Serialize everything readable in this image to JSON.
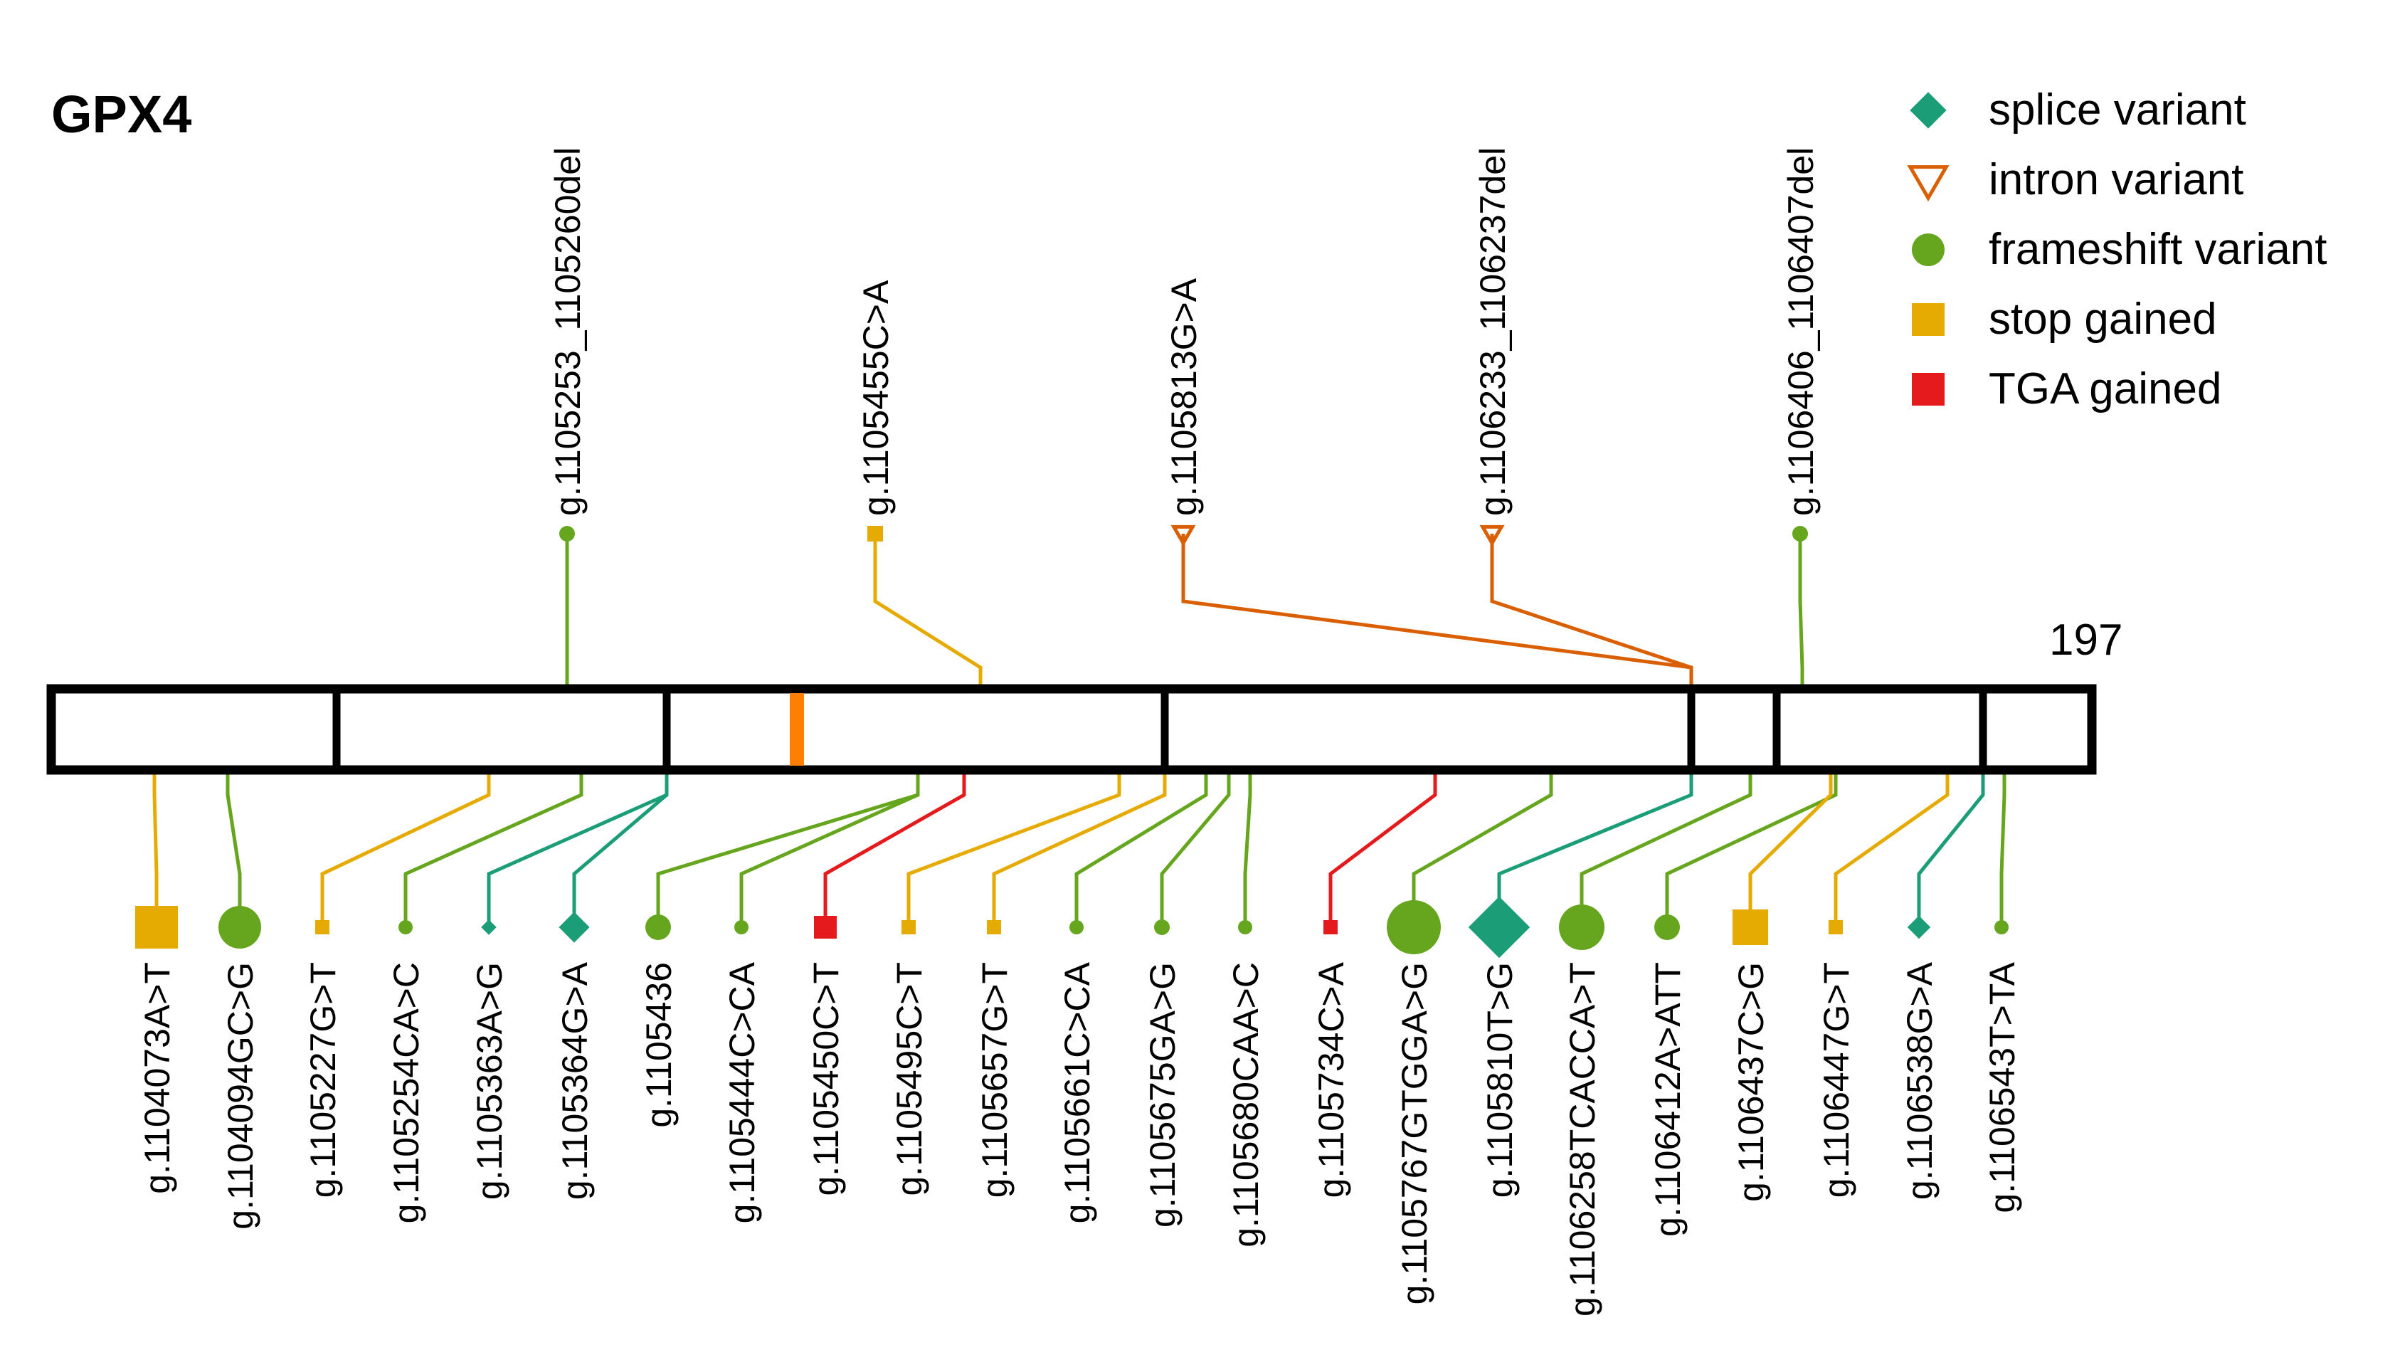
{
  "title": "GPX4",
  "protein_length_label": "197",
  "colors": {
    "splice": "#1b9e77",
    "intron": "#d95f02",
    "frameshift": "#66a61e",
    "stop": "#e6ab02",
    "tga": "#e41a1c",
    "region": "#ff7f00",
    "frame": "#000000"
  },
  "legend": [
    {
      "key": "splice",
      "label": "splice variant",
      "shape": "diamond"
    },
    {
      "key": "intron",
      "label": "intron variant",
      "shape": "triangle-down-open"
    },
    {
      "key": "frameshift",
      "label": "frameshift variant",
      "shape": "circle"
    },
    {
      "key": "stop",
      "label": "stop gained",
      "shape": "square"
    },
    {
      "key": "tga",
      "label": "TGA gained",
      "shape": "square"
    }
  ],
  "top_variants": [
    {
      "label": "g.1105253_1105260del",
      "type": "frameshift"
    },
    {
      "label": "g.1105455C>A",
      "type": "stop"
    },
    {
      "label": "g.1105813G>A",
      "type": "intron"
    },
    {
      "label": "g.1106233_1106237del",
      "type": "intron"
    },
    {
      "label": "g.1106406_1106407del",
      "type": "frameshift"
    }
  ],
  "bottom_variants": [
    {
      "label": "g.1104073A>T",
      "type": "stop"
    },
    {
      "label": "g.1104094GC>G",
      "type": "frameshift"
    },
    {
      "label": "g.1105227G>T",
      "type": "stop"
    },
    {
      "label": "g.1105254CA>C",
      "type": "frameshift"
    },
    {
      "label": "g.1105363A>G",
      "type": "splice"
    },
    {
      "label": "g.1105364G>A",
      "type": "splice"
    },
    {
      "label": "g.1105436",
      "type": "frameshift"
    },
    {
      "label": "g.1105444C>CA",
      "type": "frameshift"
    },
    {
      "label": "g.1105450C>T",
      "type": "tga"
    },
    {
      "label": "g.1105495C>T",
      "type": "stop"
    },
    {
      "label": "g.1105657G>T",
      "type": "stop"
    },
    {
      "label": "g.1105661C>CA",
      "type": "frameshift"
    },
    {
      "label": "g.1105675GA>G",
      "type": "frameshift"
    },
    {
      "label": "g.1105680CAA>C",
      "type": "frameshift"
    },
    {
      "label": "g.1105734C>A",
      "type": "tga"
    },
    {
      "label": "g.1105767GTGGA>G",
      "type": "frameshift"
    },
    {
      "label": "g.1105810T>G",
      "type": "splice"
    },
    {
      "label": "g.1106258TCACCA>T",
      "type": "frameshift"
    },
    {
      "label": "g.1106412A>ATT",
      "type": "frameshift"
    },
    {
      "label": "g.1106437C>G",
      "type": "stop"
    },
    {
      "label": "g.1106447G>T",
      "type": "stop"
    },
    {
      "label": "g.1106538G>A",
      "type": "splice"
    },
    {
      "label": "g.1106543T>TA",
      "type": "frameshift"
    }
  ]
}
